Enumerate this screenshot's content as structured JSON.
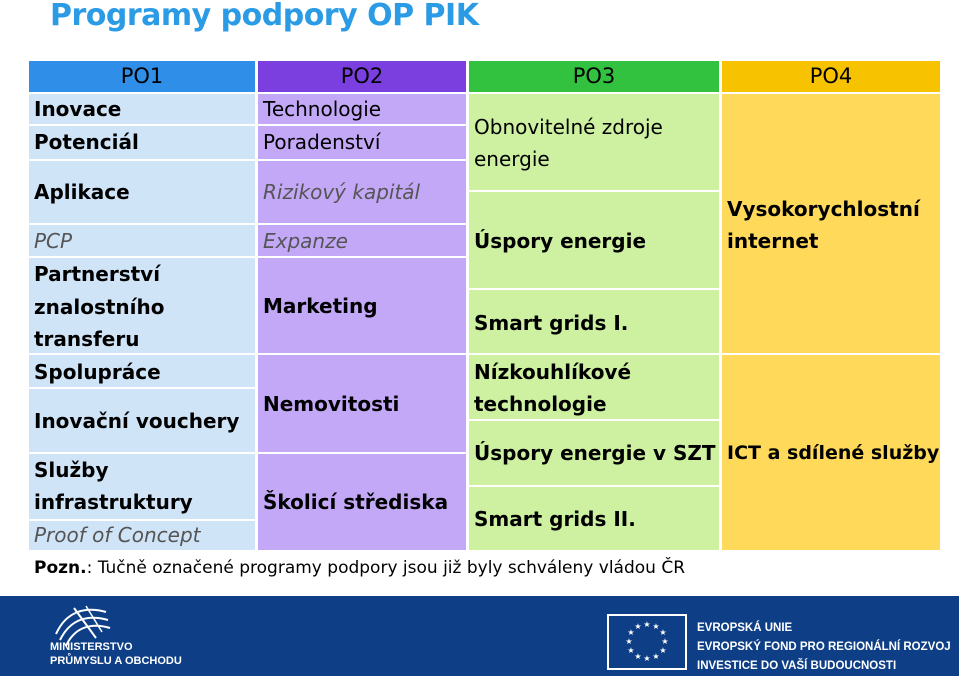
{
  "title": "Programy podpory OP PIK",
  "headers": {
    "po1": "PO1",
    "po2": "PO2",
    "po3": "PO3",
    "po4": "PO4"
  },
  "po1": {
    "inovace": "Inovace",
    "potencial": "Potenciál",
    "aplikace": "Aplikace",
    "pcp": "PCP",
    "partnerstvi_1": "Partnerství",
    "partnerstvi_2": "znalostního",
    "partnerstvi_3": "transferu",
    "spoluprace": "Spolupráce",
    "vouchery": "Inovační vouchery",
    "sluzby_1": "Služby",
    "sluzby_2": "infrastruktury",
    "proof": "Proof of Concept"
  },
  "po2": {
    "technologie": "Technologie",
    "poradenstvi": "Poradenství",
    "rizikovy": "Rizikový kapitál",
    "expanze": "Expanze",
    "marketing": "Marketing",
    "nemovitosti": "Nemovitosti",
    "skolici": "Školicí střediska"
  },
  "po3": {
    "obnovitelne_1": "Obnovitelné zdroje",
    "obnovitelne_2": "energie",
    "uspory": "Úspory energie",
    "smart1": "Smart grids I.",
    "nizko_1": "Nízkouhlíkové",
    "nizko_2": "technologie",
    "uspory_szt": "Úspory energie v SZT",
    "smart2": "Smart grids II."
  },
  "po4": {
    "vysoko_1": "Vysokorychlostní",
    "vysoko_2": "internet",
    "ict": "ICT a sdílené služby"
  },
  "note": {
    "label": "Pozn.",
    "text": ": Tučně označené programy podpory jsou již byly schváleny vládou ČR"
  },
  "footer": {
    "ministry_1": "MINISTERSTVO",
    "ministry_2": "PRŮMYSLU A OBCHODU",
    "eu_1": "EVROPSKÁ UNIE",
    "eu_2": "EVROPSKÝ FOND PRO REGIONÁLNÍ ROZVOJ",
    "eu_3": "INVESTICE DO VAŠÍ BUDOUCNOSTI"
  },
  "colors": {
    "title": "#2a9be4",
    "po1_head": "#2f8fe8",
    "po2_head": "#7b3fe0",
    "po3_head": "#33c23f",
    "po4_head": "#f7c200",
    "po1": "#cfe4f7",
    "po2": "#c2a8f6",
    "po3": "#cdf0a1",
    "po4": "#ffd95a",
    "footer": "#0e3f86"
  }
}
